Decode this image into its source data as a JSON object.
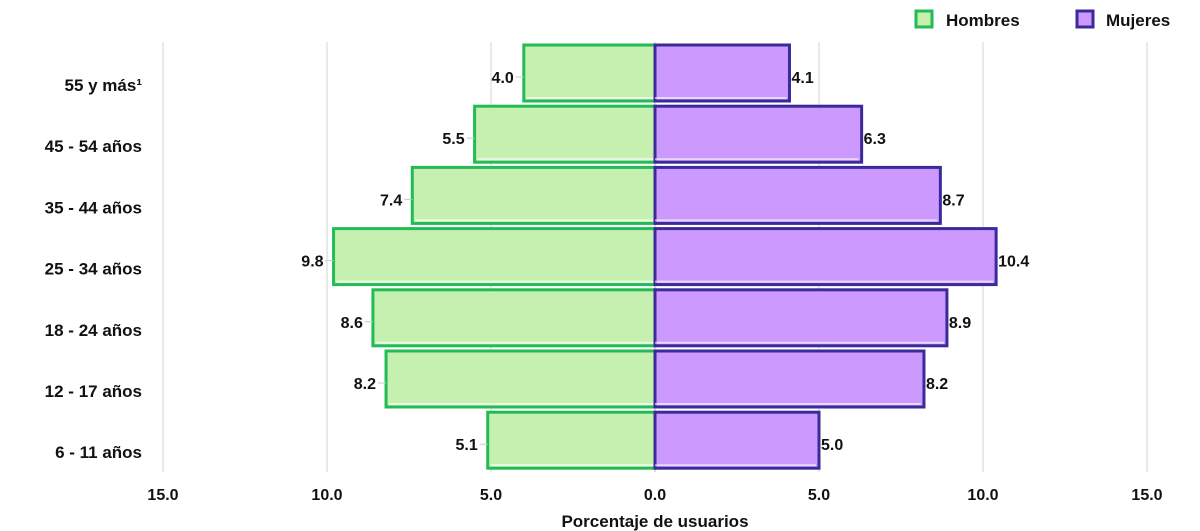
{
  "chart_data": {
    "type": "bar",
    "orientation": "horizontal",
    "layout": "population-pyramid",
    "title": "",
    "xlabel": "Porcentaje de usuarios",
    "ylabel": "",
    "xlim": [
      -15,
      15
    ],
    "x_ticks": [
      -15,
      -10,
      -5,
      0,
      5,
      10,
      15
    ],
    "x_tick_labels": [
      "15.0",
      "10.0",
      "5.0",
      "0.0",
      "5.0",
      "10.0",
      "15.0"
    ],
    "grid": true,
    "legend_position": "top-right",
    "categories": [
      "55 y más¹",
      "45 - 54 años",
      "35 - 44 años",
      "25 - 34 años",
      "18 - 24 años",
      "12 - 17 años",
      "6 - 11 años"
    ],
    "series": [
      {
        "name": "Hombres",
        "side": "left",
        "fill": "#c6f0b0",
        "stroke": "#22bb55",
        "values": [
          4.0,
          5.5,
          7.4,
          9.8,
          8.6,
          8.2,
          5.1
        ],
        "labels": [
          "4.0",
          "5.5",
          "7.4",
          "9.8",
          "8.6",
          "8.2",
          "5.1"
        ]
      },
      {
        "name": "Mujeres",
        "side": "right",
        "fill": "#cc99ff",
        "stroke": "#3a2a9a",
        "values": [
          4.1,
          6.3,
          8.7,
          10.4,
          8.9,
          8.2,
          5.0
        ],
        "labels": [
          "4.1",
          "6.3",
          "8.7",
          "10.4",
          "8.9",
          "8.2",
          "5.0"
        ]
      }
    ]
  }
}
